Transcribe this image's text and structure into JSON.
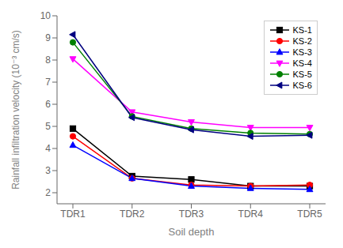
{
  "chart_data": {
    "type": "line",
    "categories": [
      "TDR1",
      "TDR2",
      "TDR3",
      "TDR4",
      "TDR5"
    ],
    "series": [
      {
        "name": "KS-1",
        "color": "#000000",
        "marker": "square",
        "values": [
          4.9,
          2.75,
          2.6,
          2.3,
          2.3
        ]
      },
      {
        "name": "KS-2",
        "color": "#ff0000",
        "marker": "circle",
        "values": [
          4.55,
          2.65,
          2.35,
          2.3,
          2.35
        ]
      },
      {
        "name": "KS-3",
        "color": "#0000ff",
        "marker": "triangle-up",
        "values": [
          4.15,
          2.65,
          2.3,
          2.2,
          2.15
        ]
      },
      {
        "name": "KS-4",
        "color": "#ff00ff",
        "marker": "triangle-down",
        "values": [
          8.05,
          5.65,
          5.2,
          4.95,
          4.95
        ]
      },
      {
        "name": "KS-5",
        "color": "#008000",
        "marker": "circle",
        "values": [
          8.8,
          5.45,
          4.9,
          4.7,
          4.65
        ]
      },
      {
        "name": "KS-6",
        "color": "#000080",
        "marker": "triangle-left",
        "values": [
          9.15,
          5.4,
          4.85,
          4.55,
          4.6
        ]
      }
    ],
    "xlabel": "Soil depth",
    "ylabel": "Rainfall infiltration velocity (10⁻³ cm/s)",
    "ylim": [
      1.5,
      10
    ],
    "yticks": [
      2,
      3,
      4,
      5,
      6,
      7,
      8,
      9,
      10
    ],
    "legend": "upper right",
    "grid": false
  }
}
